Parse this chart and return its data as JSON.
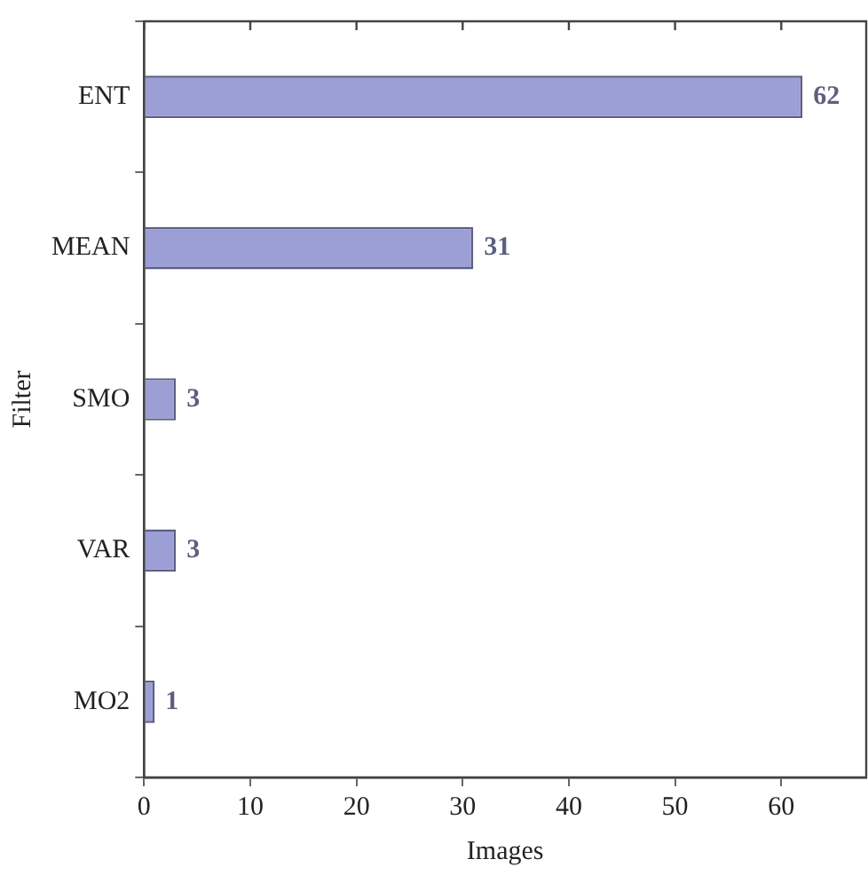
{
  "chart_data": {
    "type": "bar",
    "orientation": "horizontal",
    "categories": [
      "ENT",
      "MEAN",
      "SMO",
      "VAR",
      "MO2"
    ],
    "values": [
      62,
      31,
      3,
      3,
      1
    ],
    "color": "#9c9ed6",
    "xlabel": "Images",
    "ylabel": "Filter",
    "xlim": [
      0,
      68
    ],
    "xticks": [
      0,
      10,
      20,
      30,
      40,
      50,
      60
    ],
    "data_labels": true,
    "grid": false,
    "legend": false
  }
}
